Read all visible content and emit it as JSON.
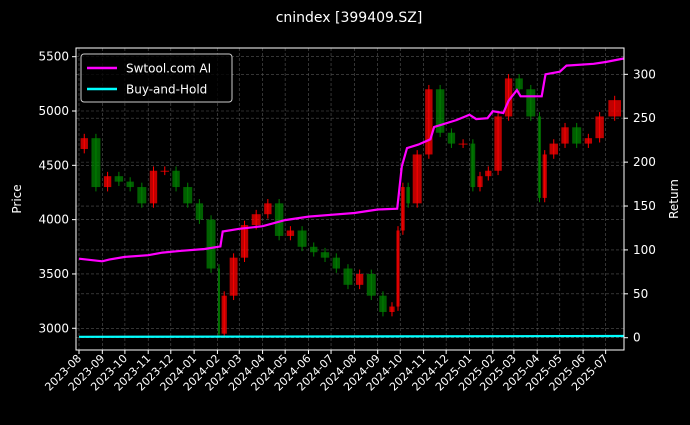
{
  "chart_data": {
    "type": "candlestick+line",
    "title": "cnindex [399409.SZ]",
    "ylabel_left": "Price",
    "ylabel_right": "Return",
    "ylim_left": [
      2800,
      5580
    ],
    "ylim_right": [
      -14,
      330
    ],
    "yticks_left": [
      3000,
      3500,
      4000,
      4500,
      5000,
      5500
    ],
    "yticks_right": [
      0,
      50,
      100,
      150,
      200,
      250,
      300
    ],
    "xticks": [
      "2023-08",
      "2023-09",
      "2023-10",
      "2023-11",
      "2023-12",
      "2024-01",
      "2024-02",
      "2024-03",
      "2024-04",
      "2024-05",
      "2024-06",
      "2024-07",
      "2024-08",
      "2024-09",
      "2024-10",
      "2024-11",
      "2024-12",
      "2025-01",
      "2025-02",
      "2025-03",
      "2025-04",
      "2025-05",
      "2025-06",
      "2025-07"
    ],
    "grid": true,
    "legend_position": "top-left",
    "colors": {
      "up": "#ff0000",
      "down": "#008000",
      "strategy": "#ff00ff",
      "buy_hold": "#00ffff",
      "background": "#000000"
    },
    "price": [
      [
        "2023-08-01",
        4650
      ],
      [
        "2023-08-15",
        4750
      ],
      [
        "2023-09-01",
        4300
      ],
      [
        "2023-09-15",
        4400
      ],
      [
        "2023-10-01",
        4350
      ],
      [
        "2023-10-15",
        4300
      ],
      [
        "2023-11-01",
        4150
      ],
      [
        "2023-11-15",
        4450
      ],
      [
        "2023-12-01",
        4450
      ],
      [
        "2023-12-15",
        4300
      ],
      [
        "2024-01-01",
        4150
      ],
      [
        "2024-01-15",
        4000
      ],
      [
        "2024-02-01",
        3550
      ],
      [
        "2024-02-05",
        2950
      ],
      [
        "2024-02-15",
        3300
      ],
      [
        "2024-03-01",
        3650
      ],
      [
        "2024-03-15",
        3950
      ],
      [
        "2024-04-01",
        4050
      ],
      [
        "2024-04-15",
        4150
      ],
      [
        "2024-05-01",
        3850
      ],
      [
        "2024-05-15",
        3900
      ],
      [
        "2024-06-01",
        3750
      ],
      [
        "2024-06-15",
        3700
      ],
      [
        "2024-07-01",
        3650
      ],
      [
        "2024-07-15",
        3550
      ],
      [
        "2024-08-01",
        3400
      ],
      [
        "2024-08-15",
        3500
      ],
      [
        "2024-09-01",
        3300
      ],
      [
        "2024-09-15",
        3150
      ],
      [
        "2024-09-25",
        3200
      ],
      [
        "2024-10-01",
        3900
      ],
      [
        "2024-10-08",
        4300
      ],
      [
        "2024-10-15",
        4150
      ],
      [
        "2024-11-01",
        4600
      ],
      [
        "2024-11-15",
        5200
      ],
      [
        "2024-12-01",
        4800
      ],
      [
        "2024-12-15",
        4700
      ],
      [
        "2025-01-01",
        4700
      ],
      [
        "2025-01-10",
        4300
      ],
      [
        "2025-01-20",
        4400
      ],
      [
        "2025-02-01",
        4450
      ],
      [
        "2025-02-15",
        4950
      ],
      [
        "2025-03-01",
        5300
      ],
      [
        "2025-03-15",
        5200
      ],
      [
        "2025-04-01",
        4950
      ],
      [
        "2025-04-07",
        4200
      ],
      [
        "2025-04-15",
        4600
      ],
      [
        "2025-05-01",
        4700
      ],
      [
        "2025-05-15",
        4850
      ],
      [
        "2025-06-01",
        4700
      ],
      [
        "2025-06-15",
        4750
      ],
      [
        "2025-07-01",
        4950
      ],
      [
        "2025-07-25",
        5100
      ]
    ],
    "series": [
      {
        "name": "Swtool.com AI",
        "points": [
          [
            "2023-08-01",
            90
          ],
          [
            "2023-09-01",
            87
          ],
          [
            "2023-09-10",
            89
          ],
          [
            "2023-10-01",
            92
          ],
          [
            "2023-11-01",
            94
          ],
          [
            "2023-11-20",
            97
          ],
          [
            "2023-12-15",
            99
          ],
          [
            "2024-01-15",
            101
          ],
          [
            "2024-02-05",
            104
          ],
          [
            "2024-02-08",
            121
          ],
          [
            "2024-03-01",
            124
          ],
          [
            "2024-04-01",
            127
          ],
          [
            "2024-05-01",
            134
          ],
          [
            "2024-06-01",
            138
          ],
          [
            "2024-07-01",
            140
          ],
          [
            "2024-08-01",
            142
          ],
          [
            "2024-09-01",
            146
          ],
          [
            "2024-09-27",
            147
          ],
          [
            "2024-10-03",
            195
          ],
          [
            "2024-10-10",
            216
          ],
          [
            "2024-10-25",
            220
          ],
          [
            "2024-11-10",
            226
          ],
          [
            "2024-11-15",
            240
          ],
          [
            "2024-12-15",
            248
          ],
          [
            "2025-01-01",
            254
          ],
          [
            "2025-01-10",
            249
          ],
          [
            "2025-01-25",
            250
          ],
          [
            "2025-02-01",
            258
          ],
          [
            "2025-02-15",
            256
          ],
          [
            "2025-02-22",
            270
          ],
          [
            "2025-03-05",
            282
          ],
          [
            "2025-03-10",
            275
          ],
          [
            "2025-04-07",
            275
          ],
          [
            "2025-04-12",
            300
          ],
          [
            "2025-05-01",
            303
          ],
          [
            "2025-05-10",
            310
          ],
          [
            "2025-06-15",
            312
          ],
          [
            "2025-07-01",
            314
          ],
          [
            "2025-07-25",
            318
          ]
        ]
      },
      {
        "name": "Buy-and-Hold",
        "points": [
          [
            "2023-08-01",
            1
          ],
          [
            "2025-07-25",
            2
          ]
        ]
      }
    ]
  }
}
